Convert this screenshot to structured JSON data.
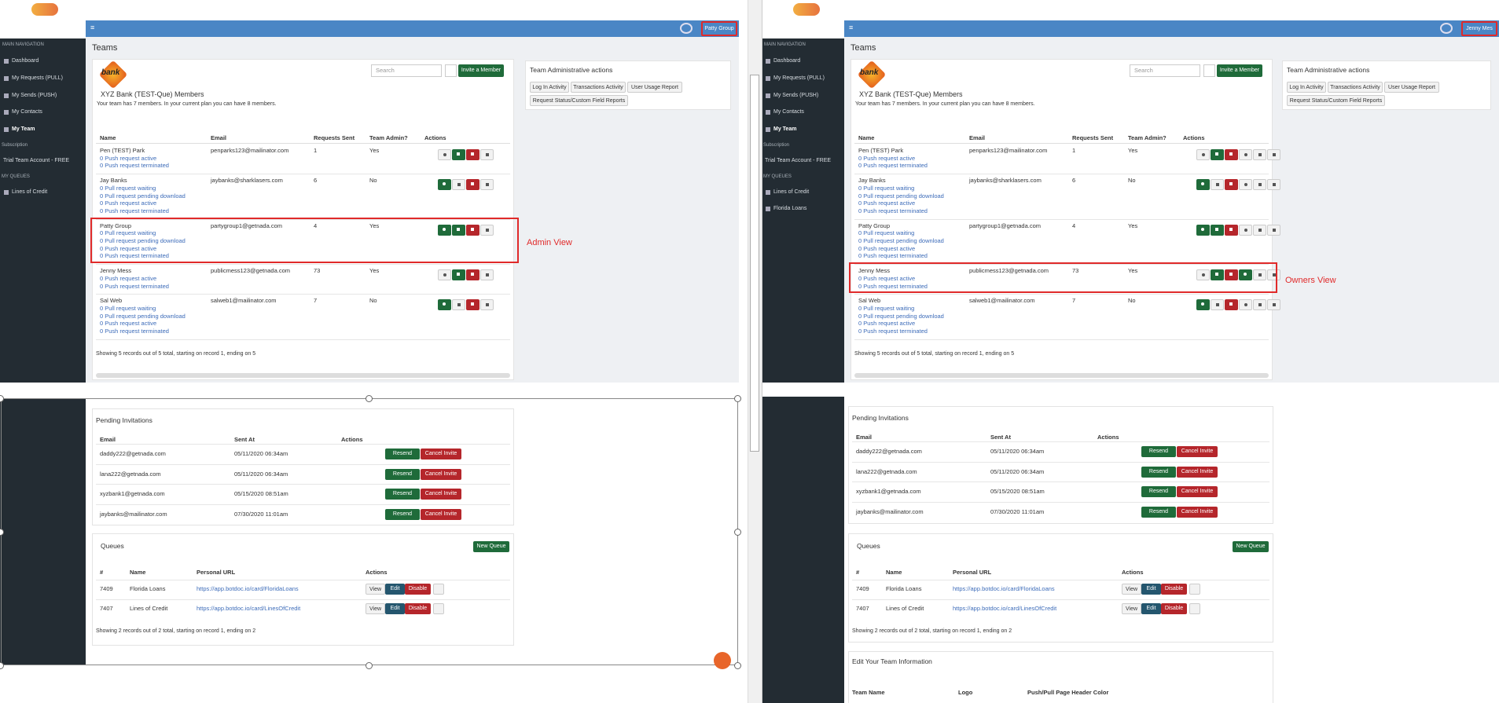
{
  "left_panel": {
    "user_button": "Patty Group",
    "nav": {
      "main_heading": "MAIN NAVIGATION",
      "items": [
        "Dashboard",
        "My Requests (PULL)",
        "My Sends (PUSH)",
        "My Contacts",
        "My Team"
      ],
      "subscription_heading": "Subscription",
      "subscription": "Trial Team Account - FREE",
      "queues_heading": "MY QUEUES",
      "queues": [
        "Lines of Credit"
      ]
    },
    "page_title": "Teams",
    "team": {
      "logo": "bank",
      "search_placeholder": "Search",
      "invite_button": "Invite a Member",
      "title": "XYZ Bank (TEST-Que) Members",
      "subtitle": "Your team has 7 members. In your current plan you can have 8 members.",
      "columns": [
        "Name",
        "Email",
        "Requests Sent",
        "Team Admin?",
        "Actions"
      ],
      "rows": [
        {
          "name": "Pen (TEST) Park",
          "email": "penparks123@mailinator.com",
          "requests_sent": "1",
          "team_admin": "Yes",
          "links": [
            "0 Push request active",
            "0 Push request terminated"
          ]
        },
        {
          "name": "Jay Banks",
          "email": "jaybanks@sharklasers.com",
          "requests_sent": "6",
          "team_admin": "No",
          "links": [
            "0 Pull request waiting",
            "0 Pull request pending download",
            "0 Push request active",
            "0 Push request terminated"
          ]
        },
        {
          "name": "Patty Group",
          "email": "partygroup1@getnada.com",
          "requests_sent": "4",
          "team_admin": "Yes",
          "links": [
            "0 Pull request waiting",
            "0 Pull request pending download",
            "0 Push request active",
            "0 Push request terminated"
          ]
        },
        {
          "name": "Jenny Mess",
          "email": "publicmess123@getnada.com",
          "requests_sent": "73",
          "team_admin": "Yes",
          "links": [
            "0 Push request active",
            "0 Push request terminated"
          ]
        },
        {
          "name": "Sal Web",
          "email": "salweb1@mailinator.com",
          "requests_sent": "7",
          "team_admin": "No",
          "links": [
            "0 Pull request waiting",
            "0 Pull request pending download",
            "0 Push request active",
            "0 Push request terminated"
          ]
        }
      ],
      "footer": "Showing 5 records out of 5 total, starting on record 1, ending on 5"
    },
    "admin_actions": {
      "title": "Team Administrative actions",
      "buttons": [
        "Log In Activity",
        "Transactions Activity",
        "User Usage Report",
        "Request Status/Custom Field Reports"
      ]
    },
    "pending": {
      "title": "Pending Invitations",
      "columns": [
        "Email",
        "Sent At",
        "Actions"
      ],
      "rows": [
        {
          "email": "daddy222@getnada.com",
          "sent_at": "05/11/2020 06:34am"
        },
        {
          "email": "lana222@getnada.com",
          "sent_at": "05/11/2020 06:34am"
        },
        {
          "email": "xyzbank1@getnada.com",
          "sent_at": "05/15/2020 08:51am"
        },
        {
          "email": "jaybanks@mailinator.com",
          "sent_at": "07/30/2020 11:01am"
        }
      ],
      "resend": "Resend",
      "cancel": "Cancel Invite"
    },
    "queues": {
      "title": "Queues",
      "new_button": "New Queue",
      "columns": [
        "#",
        "Name",
        "Personal URL",
        "Actions"
      ],
      "rows": [
        {
          "id": "7409",
          "name": "Florida Loans",
          "url": "https://app.botdoc.io/card/FloridaLoans"
        },
        {
          "id": "7407",
          "name": "Lines of Credit",
          "url": "https://app.botdoc.io/card/LinesOfCredit"
        }
      ],
      "view": "View",
      "edit": "Edit",
      "disable": "Disable",
      "footer": "Showing 2 records out of 2 total, starting on record 1, ending on 2"
    },
    "annotation": "Admin View"
  },
  "right_panel": {
    "user_button": "Jenny Mes",
    "nav": {
      "main_heading": "MAIN NAVIGATION",
      "items": [
        "Dashboard",
        "My Requests (PULL)",
        "My Sends (PUSH)",
        "My Contacts",
        "My Team"
      ],
      "subscription_heading": "Subscription",
      "subscription": "Trial Team Account - FREE",
      "queues_heading": "MY QUEUES",
      "queues": [
        "Lines of Credit",
        "Florida Loans"
      ]
    },
    "page_title": "Teams",
    "team": {
      "logo": "bank",
      "search_placeholder": "Search",
      "invite_button": "Invite a Member",
      "title": "XYZ Bank (TEST-Que) Members",
      "subtitle": "Your team has 7 members. In your current plan you can have 8 members.",
      "columns": [
        "Name",
        "Email",
        "Requests Sent",
        "Team Admin?",
        "Actions"
      ],
      "rows": [
        {
          "name": "Pen (TEST) Park",
          "email": "penparks123@mailinator.com",
          "requests_sent": "1",
          "team_admin": "Yes",
          "links": [
            "0 Push request active",
            "0 Push request terminated"
          ]
        },
        {
          "name": "Jay Banks",
          "email": "jaybanks@sharklasers.com",
          "requests_sent": "6",
          "team_admin": "No",
          "links": [
            "0 Pull request waiting",
            "0 Pull request pending download",
            "0 Push request active",
            "0 Push request terminated"
          ]
        },
        {
          "name": "Patty Group",
          "email": "partygroup1@getnada.com",
          "requests_sent": "4",
          "team_admin": "Yes",
          "links": [
            "0 Pull request waiting",
            "0 Pull request pending download",
            "0 Push request active",
            "0 Push request terminated"
          ]
        },
        {
          "name": "Jenny Mess",
          "email": "publicmess123@getnada.com",
          "requests_sent": "73",
          "team_admin": "Yes",
          "links": [
            "0 Push request active",
            "0 Push request terminated"
          ]
        },
        {
          "name": "Sal Web",
          "email": "salweb1@mailinator.com",
          "requests_sent": "7",
          "team_admin": "No",
          "links": [
            "0 Pull request waiting",
            "0 Pull request pending download",
            "0 Push request active",
            "0 Push request terminated"
          ]
        }
      ],
      "footer": "Showing 5 records out of 5 total, starting on record 1, ending on 5"
    },
    "admin_actions": {
      "title": "Team Administrative actions",
      "buttons": [
        "Log In Activity",
        "Transactions Activity",
        "User Usage Report",
        "Request Status/Custom Field Reports"
      ]
    },
    "pending": {
      "title": "Pending Invitations",
      "columns": [
        "Email",
        "Sent At",
        "Actions"
      ],
      "rows": [
        {
          "email": "daddy222@getnada.com",
          "sent_at": "05/11/2020 06:34am"
        },
        {
          "email": "lana222@getnada.com",
          "sent_at": "05/11/2020 06:34am"
        },
        {
          "email": "xyzbank1@getnada.com",
          "sent_at": "05/15/2020 08:51am"
        },
        {
          "email": "jaybanks@mailinator.com",
          "sent_at": "07/30/2020 11:01am"
        }
      ],
      "resend": "Resend",
      "cancel": "Cancel Invite"
    },
    "queues": {
      "title": "Queues",
      "new_button": "New Queue",
      "columns": [
        "#",
        "Name",
        "Personal URL",
        "Actions"
      ],
      "rows": [
        {
          "id": "7409",
          "name": "Florida Loans",
          "url": "https://app.botdoc.io/card/FloridaLoans"
        },
        {
          "id": "7407",
          "name": "Lines of Credit",
          "url": "https://app.botdoc.io/card/LinesOfCredit"
        }
      ],
      "view": "View",
      "edit": "Edit",
      "disable": "Disable",
      "footer": "Showing 2 records out of 2 total, starting on record 1, ending on 2"
    },
    "edit_team": {
      "title": "Edit Your Team Information",
      "columns": [
        "Team Name",
        "Logo",
        "Push/Pull Page Header Color"
      ]
    },
    "annotation": "Owners View"
  }
}
